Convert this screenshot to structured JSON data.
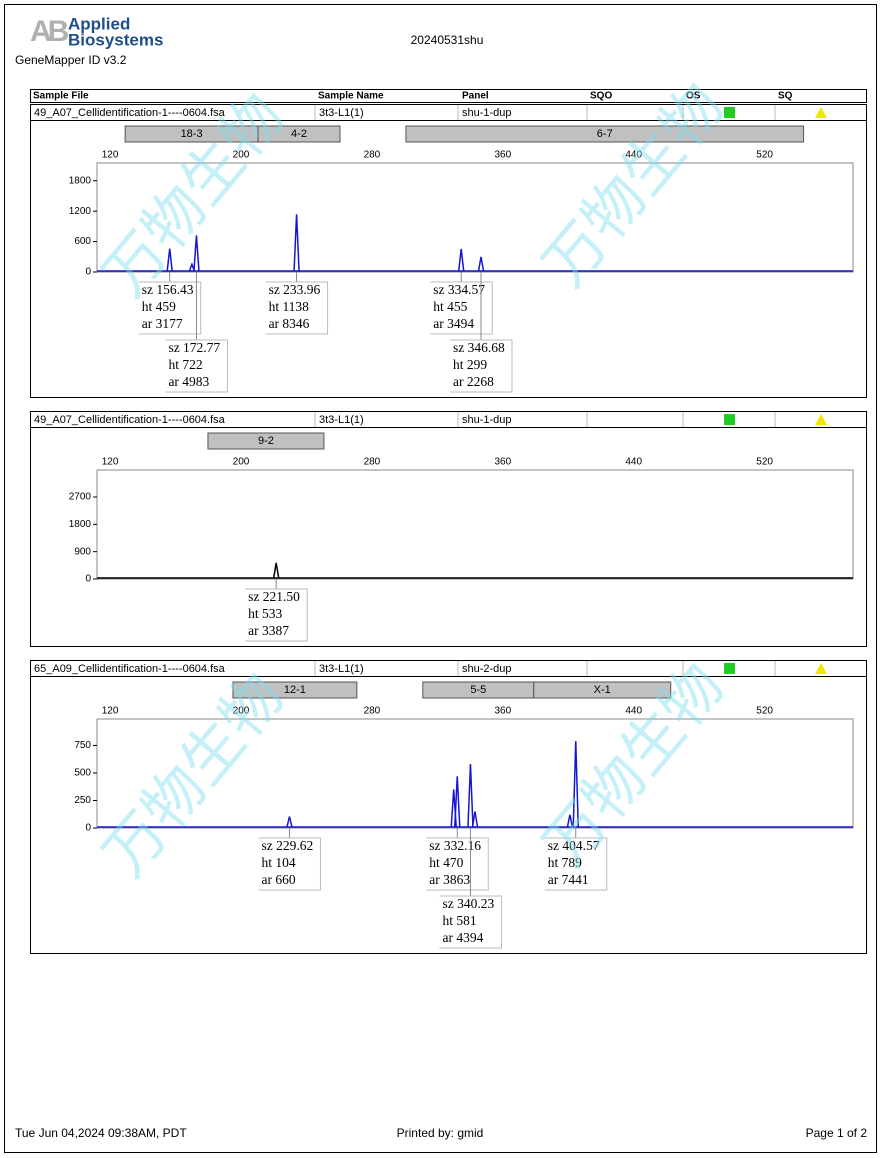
{
  "header": {
    "logo_mark": "AB",
    "brand_line1": "Applied",
    "brand_line2": "Biosystems",
    "software": "GeneMapper ID v3.2",
    "title": "20240531shu"
  },
  "columns": [
    "Sample File",
    "Sample Name",
    "Panel",
    "SQO",
    "OS",
    "SQ"
  ],
  "watermark": "万物生物",
  "chart_data": [
    {
      "type": "peaks",
      "sample_file": "49_A07_Cellidentification-1----0604.fsa",
      "sample_name": "3t3-L1(1)",
      "panel": "shu-1-dup",
      "bins": [
        {
          "label": "18-3",
          "range": [
            129.2,
            210.4
          ]
        },
        {
          "label": "4-2",
          "range": [
            210.4,
            260.5
          ]
        },
        {
          "label": "6-7",
          "range": [
            300.8,
            543.8
          ]
        }
      ],
      "xlim": [
        112,
        574
      ],
      "xticks": [
        120,
        200,
        280,
        360,
        440,
        520
      ],
      "ylim": [
        0,
        2150
      ],
      "yticks": [
        0,
        600,
        1200,
        1800
      ],
      "series": [
        {
          "color": "#1515d0",
          "x": [
            156.43,
            172.77,
            233.96,
            334.57,
            346.68
          ],
          "values": [
            459,
            722,
            1138,
            455,
            299
          ]
        },
        {
          "color": "#1515d0",
          "x": [
            170.0
          ],
          "values": [
            150
          ]
        }
      ],
      "annotations": [
        [
          "sz 156.43",
          "ht 459",
          "ar 3177"
        ],
        [
          "sz 172.77",
          "ht 722",
          "ar 4983"
        ],
        [
          "sz 233.96",
          "ht 1138",
          "ar 8346"
        ],
        [
          "sz 334.57",
          "ht 455",
          "ar 3494"
        ],
        [
          "sz 346.68",
          "ht 299",
          "ar 2268"
        ]
      ]
    },
    {
      "type": "peaks",
      "sample_file": "49_A07_Cellidentification-1----0604.fsa",
      "sample_name": "3t3-L1(1)",
      "panel": "shu-1-dup",
      "bins": [
        {
          "label": "9-2",
          "range": [
            179.8,
            250.7
          ]
        }
      ],
      "xlim": [
        112,
        574
      ],
      "xticks": [
        120,
        200,
        280,
        360,
        440,
        520
      ],
      "ylim": [
        0,
        3590
      ],
      "yticks": [
        0,
        900,
        1800,
        2700
      ],
      "series": [
        {
          "color": "#000000",
          "x": [
            221.5
          ],
          "values": [
            533
          ]
        }
      ],
      "annotations": [
        [
          "sz 221.50",
          "ht 533",
          "ar 3387"
        ]
      ]
    },
    {
      "type": "peaks",
      "sample_file": "65_A09_Cellidentification-1----0604.fsa",
      "sample_name": "3t3-L1(1)",
      "panel": "shu-2-dup",
      "bins": [
        {
          "label": "12-1",
          "range": [
            195.1,
            270.8
          ]
        },
        {
          "label": "5-5",
          "range": [
            311.1,
            378.9
          ]
        },
        {
          "label": "X-1",
          "range": [
            378.9,
            462.6
          ]
        }
      ],
      "xlim": [
        112,
        574
      ],
      "xticks": [
        120,
        200,
        280,
        360,
        440,
        520
      ],
      "ylim": [
        0,
        990
      ],
      "yticks": [
        0,
        250,
        500,
        750
      ],
      "series": [
        {
          "color": "#1515d0",
          "x": [
            229.62,
            332.16,
            340.23,
            404.57
          ],
          "values": [
            104,
            470,
            581,
            789
          ]
        },
        {
          "color": "#1515d0",
          "x": [
            330.0,
            343.0,
            401.0
          ],
          "values": [
            350,
            150,
            120
          ]
        }
      ],
      "annotations": [
        [
          "sz 229.62",
          "ht 104",
          "ar 660"
        ],
        [
          "sz 332.16",
          "ht 470",
          "ar 3863"
        ],
        [
          "sz 340.23",
          "ht 581",
          "ar 4394"
        ],
        [
          "sz 404.57",
          "ht 789",
          "ar 7441"
        ]
      ]
    }
  ],
  "footer": {
    "date": "Tue Jun 04,2024 09:38AM, PDT",
    "printed_by": "Printed by: gmid",
    "page": "Page 1 of 2"
  }
}
